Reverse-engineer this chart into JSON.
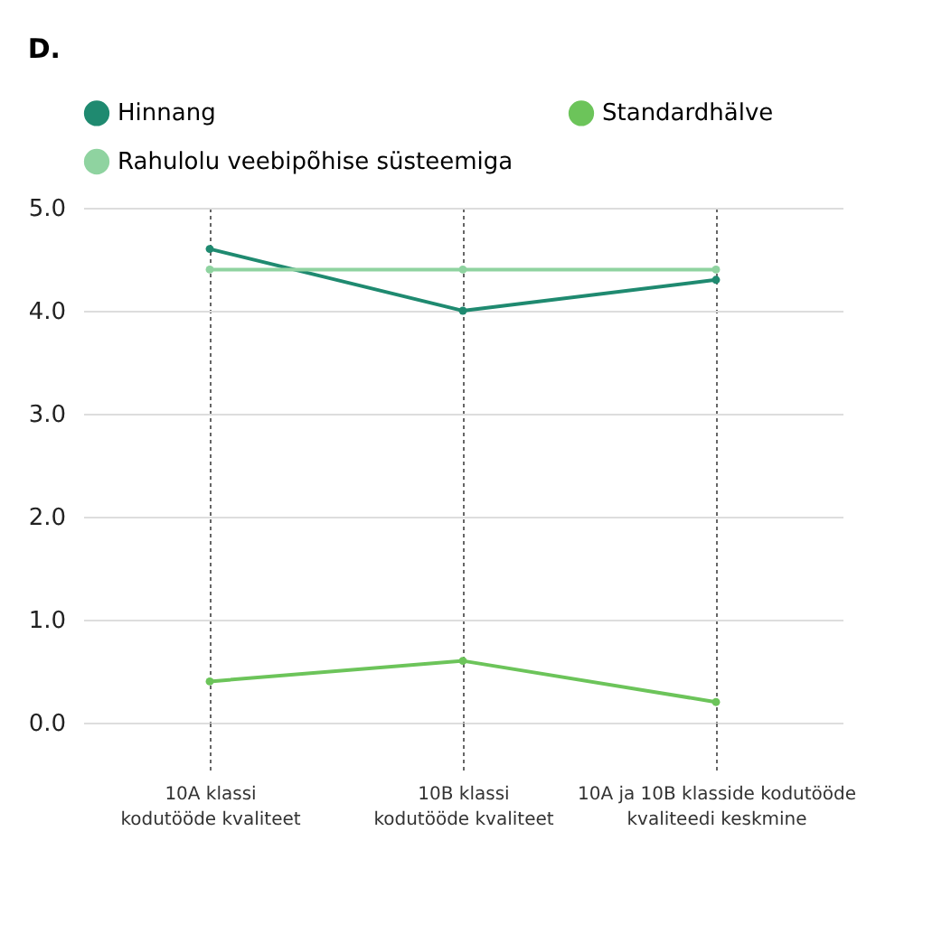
{
  "chart_data": {
    "type": "line",
    "title": "D.",
    "categories": [
      "10A klassi kodutööde kvaliteet",
      "10B klassi kodutööde kvaliteet",
      "10A ja 10B klasside kodutööde kvaliteedi keskmine"
    ],
    "series": [
      {
        "name": "Hinnang",
        "color": "#1f8a70",
        "values": [
          4.6,
          4.0,
          4.3
        ]
      },
      {
        "name": "Standardhälve",
        "color": "#6cc45a",
        "values": [
          0.4,
          0.6,
          0.2
        ]
      },
      {
        "name": "Rahulolu veebipõhise süsteemiga",
        "color": "#8fd3a0",
        "values": [
          4.4,
          4.4,
          4.4
        ]
      }
    ],
    "ylim": [
      0.0,
      5.0
    ],
    "yticks": [
      {
        "value": 0,
        "label": "0.0"
      },
      {
        "value": 1,
        "label": "1.0"
      },
      {
        "value": 2,
        "label": "2.0"
      },
      {
        "value": 3,
        "label": "3.0"
      },
      {
        "value": 4,
        "label": "4.0"
      },
      {
        "value": 5,
        "label": "5.0"
      }
    ],
    "grid": true,
    "legend": "top",
    "marker": "circle",
    "line_style": "solid"
  }
}
